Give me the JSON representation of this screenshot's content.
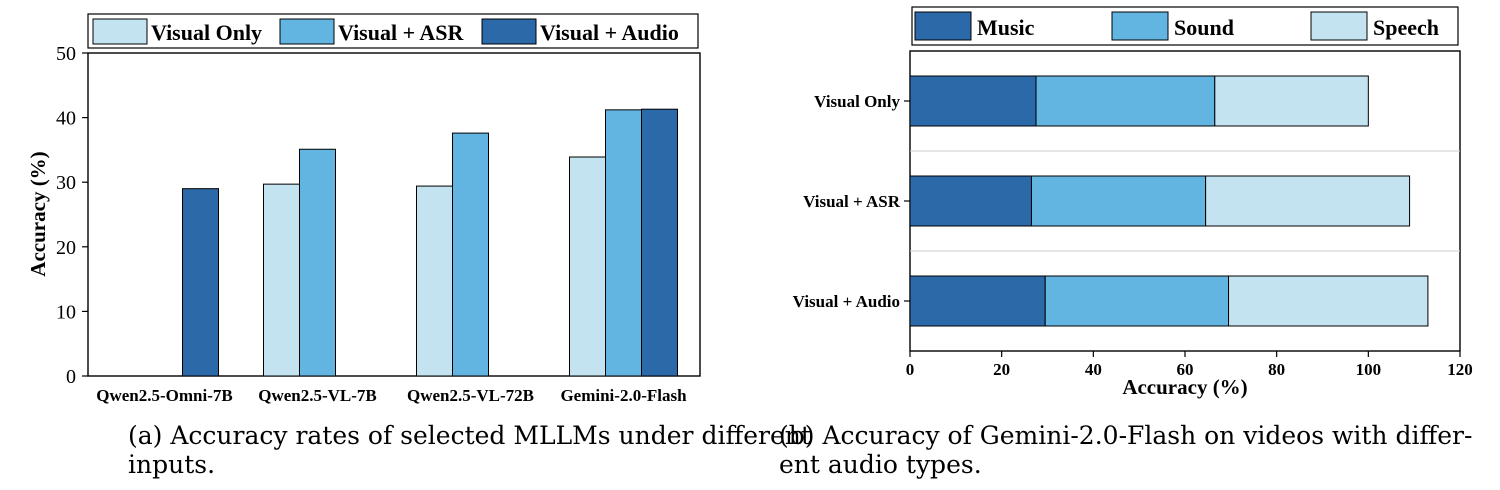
{
  "colors": {
    "visual_only": "#c2e3ef",
    "visual_asr": "#63b5e1",
    "visual_audio": "#2b69a8",
    "music": "#2b69a8",
    "sound": "#63b5e1",
    "speech": "#c2e3ef"
  },
  "captions": {
    "a_line1": "(a) Accuracy rates of selected MLLMs under different",
    "a_line2": "inputs.",
    "b_line1": "(b) Accuracy of Gemini-2.0-Flash on videos with differ-",
    "b_line2": "ent audio types."
  },
  "chart_data": [
    {
      "type": "bar",
      "ylabel": "Accuracy (%)",
      "xlabel": "",
      "ylim": [
        0,
        50
      ],
      "yticks": [
        0,
        10,
        20,
        30,
        40,
        50
      ],
      "categories": [
        "Qwen2.5-Omni-7B",
        "Qwen2.5-VL-7B",
        "Qwen2.5-VL-72B",
        "Gemini-2.0-Flash"
      ],
      "legend_position": "top",
      "grid": false,
      "series": [
        {
          "name": "Visual Only",
          "color": "#c2e3ef",
          "values": [
            null,
            29.7,
            29.4,
            33.9
          ]
        },
        {
          "name": "Visual + ASR",
          "color": "#63b5e1",
          "values": [
            null,
            35.1,
            37.6,
            41.2
          ]
        },
        {
          "name": "Visual + Audio",
          "color": "#2b69a8",
          "values": [
            29.0,
            null,
            null,
            41.3
          ]
        }
      ]
    },
    {
      "type": "bar",
      "orientation": "horizontal",
      "stacked": true,
      "xlabel": "Accuracy (%)",
      "ylabel": "",
      "xlim": [
        0,
        120
      ],
      "xticks": [
        0,
        20,
        40,
        60,
        80,
        100,
        120
      ],
      "categories": [
        "Visual Only",
        "Visual + ASR",
        "Visual + Audio"
      ],
      "legend_position": "top",
      "grid": true,
      "series": [
        {
          "name": "Music",
          "color": "#2b69a8",
          "values": [
            27.5,
            26.5,
            29.5
          ]
        },
        {
          "name": "Sound",
          "color": "#63b5e1",
          "values": [
            39.0,
            38.0,
            40.0
          ]
        },
        {
          "name": "Speech",
          "color": "#c2e3ef",
          "values": [
            33.5,
            44.5,
            43.5
          ]
        }
      ]
    }
  ]
}
